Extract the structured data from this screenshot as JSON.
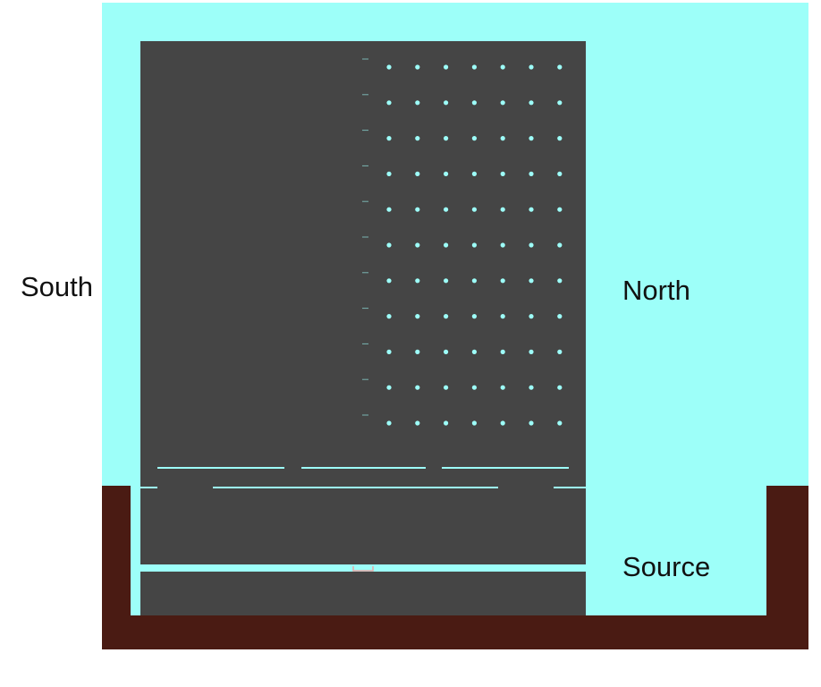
{
  "labels": {
    "south": "South",
    "north": "North",
    "source": "Source"
  },
  "grid": {
    "rows": 11,
    "columns": 8
  },
  "colors": {
    "fluid": "#9dfff9",
    "building": "#454545",
    "ground": "#4a1b13",
    "marker": "#e6a8a8"
  }
}
